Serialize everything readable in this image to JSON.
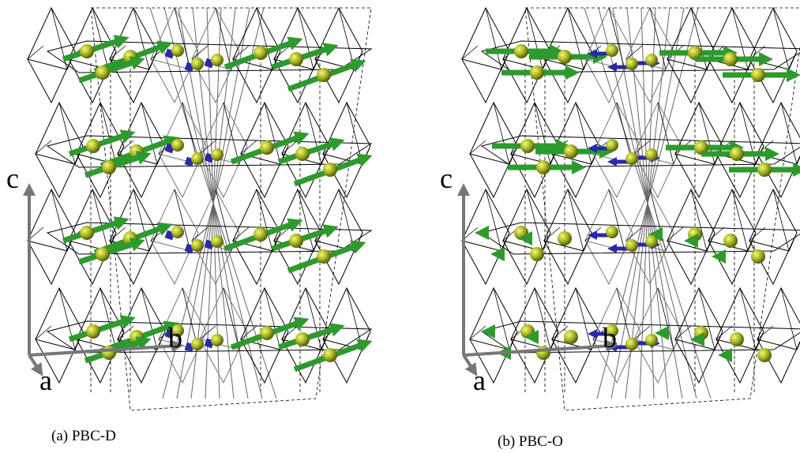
{
  "panels": [
    {
      "axis_c": "c",
      "axis_a": "a",
      "axis_b": "b",
      "caption": "(a) PBC-D"
    },
    {
      "axis_c": "c",
      "axis_a": "a",
      "axis_b": "b",
      "caption": "(b) PBC-O"
    }
  ]
}
